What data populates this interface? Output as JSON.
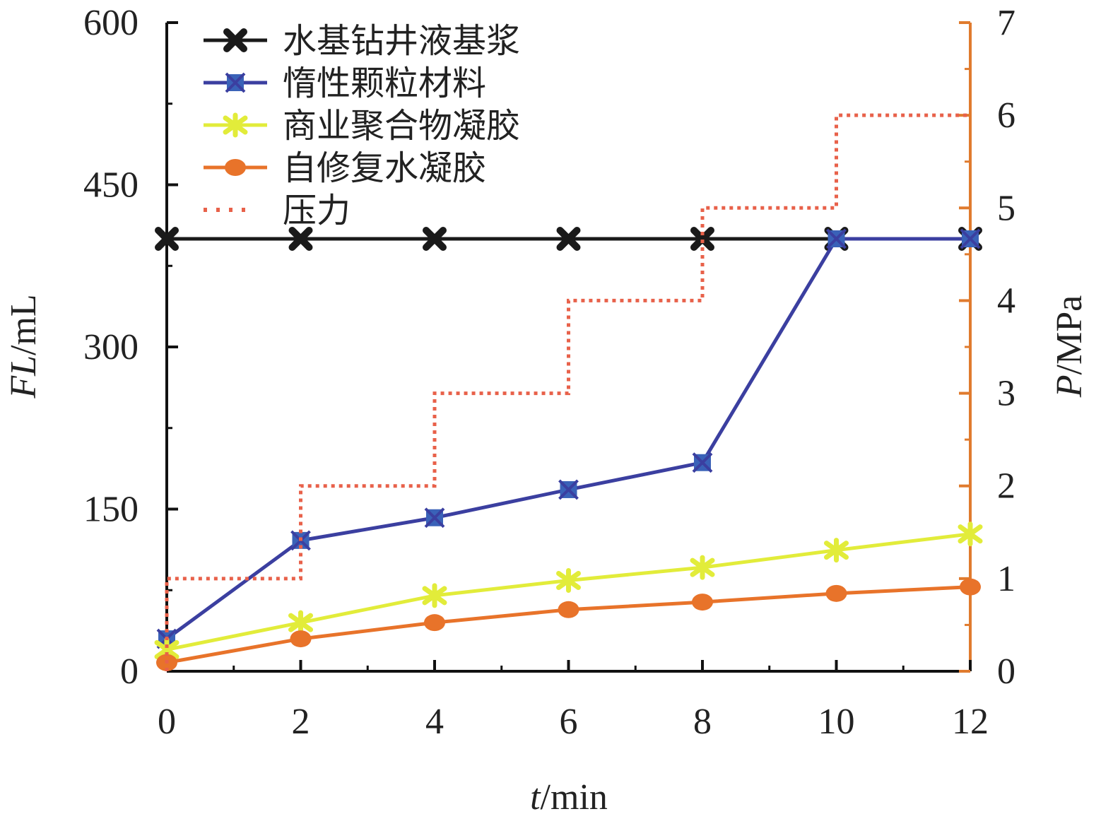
{
  "chart_data": {
    "type": "line",
    "title": "",
    "xlabel": {
      "italic": "t",
      "rest": "/min"
    },
    "ylabel": {
      "italic": "FL",
      "rest": "/mL"
    },
    "y2label": {
      "italic": "P",
      "rest": "/MPa"
    },
    "x": [
      0,
      2,
      4,
      6,
      8,
      10,
      12
    ],
    "xlim": [
      0,
      12
    ],
    "ylim": [
      0,
      600
    ],
    "y2lim": [
      0,
      7
    ],
    "xticks": [
      "0",
      "2",
      "4",
      "6",
      "8",
      "10",
      "12"
    ],
    "yticks": [
      "0",
      "150",
      "300",
      "450",
      "600"
    ],
    "y2ticks": [
      "0",
      "1",
      "2",
      "3",
      "4",
      "5",
      "6",
      "7"
    ],
    "grid": false,
    "legend_position": "top-left",
    "series": [
      {
        "name": "水基钻井液基浆",
        "color": "#1a1a1a",
        "marker": "x-icon",
        "axis": "left",
        "values": [
          400,
          400,
          400,
          400,
          400,
          400,
          400
        ]
      },
      {
        "name": "惰性颗粒材料",
        "color": "#3b3fa0",
        "marker_color": "#3a62b8",
        "marker": "square-x-icon",
        "axis": "left",
        "values": [
          30,
          121,
          142,
          168,
          193,
          400,
          400
        ]
      },
      {
        "name": "商业聚合物凝胶",
        "color": "#e2ec3a",
        "marker": "star-x-icon",
        "axis": "left",
        "values": [
          20,
          45,
          70,
          84,
          96,
          112,
          127
        ]
      },
      {
        "name": "自修复水凝胶",
        "color": "#e8732a",
        "marker": "circle-icon",
        "axis": "left",
        "values": [
          8,
          30,
          45,
          57,
          64,
          72,
          78
        ]
      },
      {
        "name": "压力",
        "color": "#e8614a",
        "style": "dotted-step",
        "axis": "right",
        "x": [
          0,
          2,
          4,
          6,
          8,
          10,
          12
        ],
        "values": [
          1,
          2,
          3,
          4,
          5,
          6,
          6
        ]
      }
    ]
  }
}
